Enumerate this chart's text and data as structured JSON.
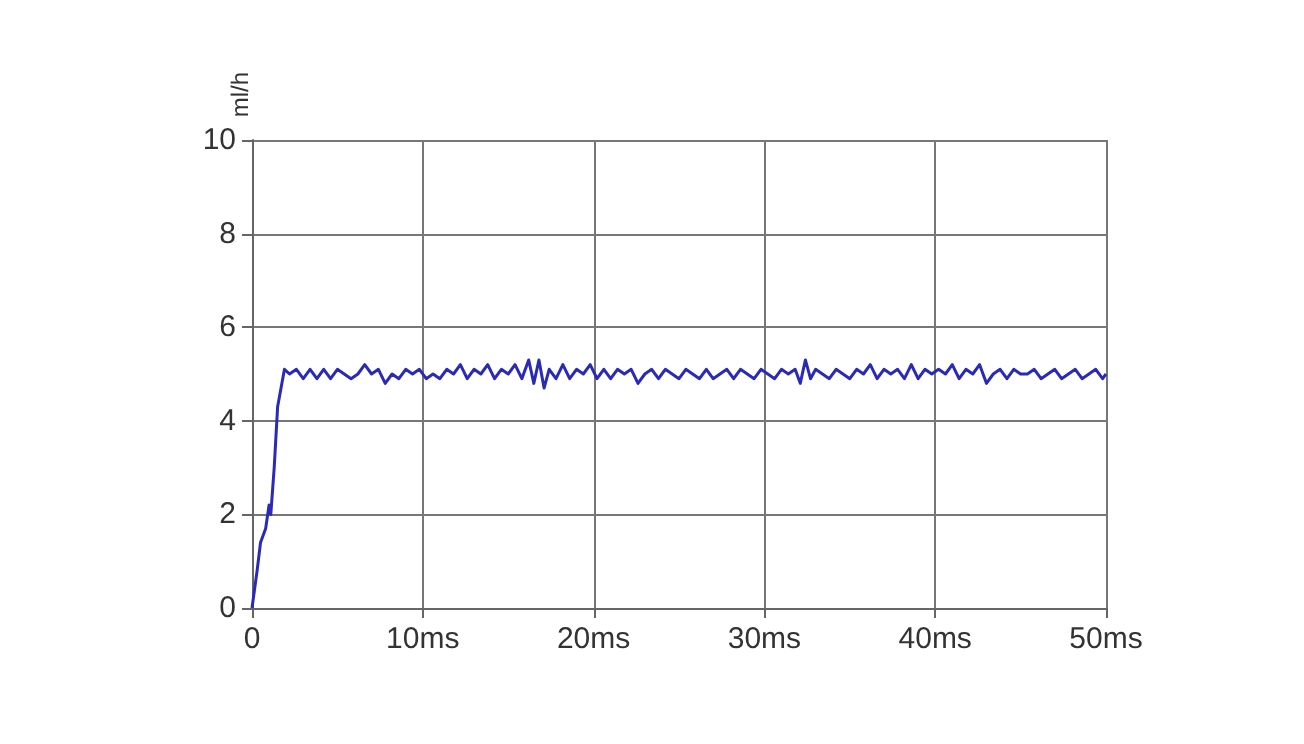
{
  "chart_data": {
    "type": "line",
    "ylabel": "ml/h",
    "xlim": [
      0,
      50
    ],
    "ylim": [
      0,
      10
    ],
    "xticks": [
      0,
      {
        "value": 10,
        "label": "10ms"
      },
      {
        "value": 20,
        "label": "20ms"
      },
      {
        "value": 30,
        "label": "30ms"
      },
      {
        "value": 40,
        "label": "40ms"
      },
      {
        "value": 50,
        "label": "50ms"
      }
    ],
    "yticks": [
      0,
      2,
      4,
      6,
      8,
      10
    ],
    "grid": true,
    "marker": "none",
    "line_style": "solid",
    "series": [
      {
        "color": "#2a2ab8",
        "x": [
          0,
          0.3,
          0.5,
          0.8,
          1.0,
          1.1,
          1.3,
          1.5,
          1.7,
          1.9,
          2.2,
          2.6,
          3.0,
          3.4,
          3.8,
          4.2,
          4.6,
          5.0,
          5.4,
          5.8,
          6.2,
          6.6,
          7.0,
          7.4,
          7.8,
          8.2,
          8.6,
          9.0,
          9.4,
          9.8,
          10.2,
          10.6,
          11.0,
          11.4,
          11.8,
          12.2,
          12.6,
          13.0,
          13.4,
          13.8,
          14.2,
          14.6,
          15.0,
          15.4,
          15.8,
          16.2,
          16.5,
          16.8,
          17.1,
          17.4,
          17.8,
          18.2,
          18.6,
          19.0,
          19.4,
          19.8,
          20.2,
          20.6,
          21.0,
          21.4,
          21.8,
          22.2,
          22.6,
          23.0,
          23.4,
          23.8,
          24.2,
          24.6,
          25.0,
          25.4,
          25.8,
          26.2,
          26.6,
          27.0,
          27.4,
          27.8,
          28.2,
          28.6,
          29.0,
          29.4,
          29.8,
          30.2,
          30.6,
          31.0,
          31.4,
          31.8,
          32.1,
          32.4,
          32.7,
          33.0,
          33.4,
          33.8,
          34.2,
          34.6,
          35.0,
          35.4,
          35.8,
          36.2,
          36.6,
          37.0,
          37.4,
          37.8,
          38.2,
          38.6,
          39.0,
          39.4,
          39.8,
          40.2,
          40.6,
          41.0,
          41.4,
          41.8,
          42.2,
          42.6,
          43.0,
          43.4,
          43.8,
          44.2,
          44.6,
          45.0,
          45.4,
          45.8,
          46.2,
          46.6,
          47.0,
          47.4,
          47.8,
          48.2,
          48.6,
          49.0,
          49.4,
          49.8,
          50.0
        ],
        "values": [
          0,
          0.8,
          1.4,
          1.7,
          2.2,
          2.0,
          3.0,
          4.3,
          4.7,
          5.1,
          5.0,
          5.1,
          4.9,
          5.1,
          4.9,
          5.1,
          4.9,
          5.1,
          5.0,
          4.9,
          5.0,
          5.2,
          5.0,
          5.1,
          4.8,
          5.0,
          4.9,
          5.1,
          5.0,
          5.1,
          4.9,
          5.0,
          4.9,
          5.1,
          5.0,
          5.2,
          4.9,
          5.1,
          5.0,
          5.2,
          4.9,
          5.1,
          5.0,
          5.2,
          4.9,
          5.3,
          4.8,
          5.3,
          4.7,
          5.1,
          4.9,
          5.2,
          4.9,
          5.1,
          5.0,
          5.2,
          4.9,
          5.1,
          4.9,
          5.1,
          5.0,
          5.1,
          4.8,
          5.0,
          5.1,
          4.9,
          5.1,
          5.0,
          4.9,
          5.1,
          5.0,
          4.9,
          5.1,
          4.9,
          5.0,
          5.1,
          4.9,
          5.1,
          5.0,
          4.9,
          5.1,
          5.0,
          4.9,
          5.1,
          5.0,
          5.1,
          4.8,
          5.3,
          4.9,
          5.1,
          5.0,
          4.9,
          5.1,
          5.0,
          4.9,
          5.1,
          5.0,
          5.2,
          4.9,
          5.1,
          5.0,
          5.1,
          4.9,
          5.2,
          4.9,
          5.1,
          5.0,
          5.1,
          5.0,
          5.2,
          4.9,
          5.1,
          5.0,
          5.2,
          4.8,
          5.0,
          5.1,
          4.9,
          5.1,
          5.0,
          5.0,
          5.1,
          4.9,
          5.0,
          5.1,
          4.9,
          5.0,
          5.1,
          4.9,
          5.0,
          5.1,
          4.9,
          5.0
        ]
      }
    ]
  }
}
